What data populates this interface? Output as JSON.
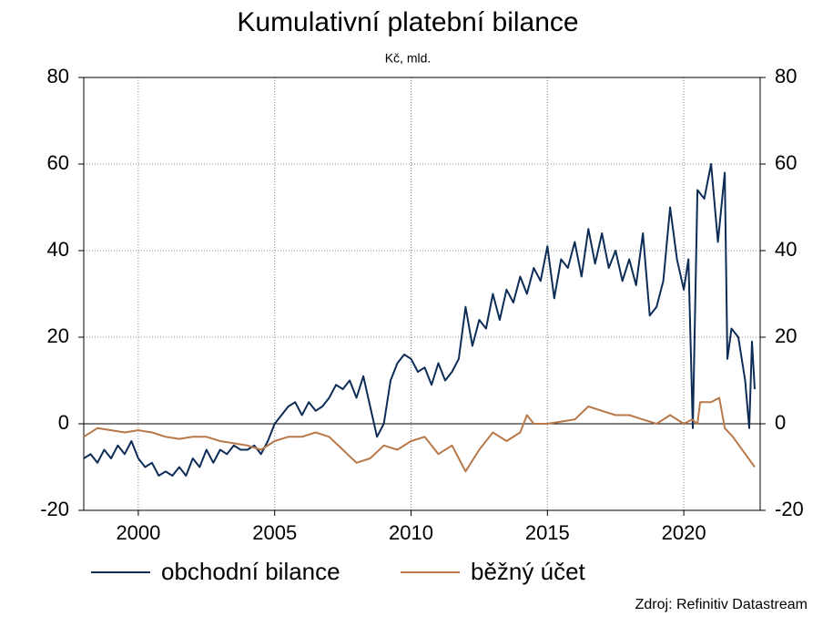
{
  "chart_data": {
    "type": "line",
    "title": "Kumulativní platební bilance",
    "subtitle": "Kč, mld.",
    "source": "Zdroj: Refinitiv Datastream",
    "xlim": [
      1998,
      2022.8
    ],
    "xticks": [
      2000,
      2005,
      2010,
      2015,
      2020
    ],
    "ylim": [
      -20,
      80
    ],
    "yticks": [
      -20,
      0,
      20,
      40,
      60,
      80
    ],
    "y2lim": [
      -20,
      80
    ],
    "y2ticks": [
      -20,
      0,
      20,
      40,
      60,
      80
    ],
    "grid": true,
    "legend": "bottom",
    "series": [
      {
        "name": "obchodní bilance",
        "color": "#0d2d57",
        "x": [
          1998,
          1998.25,
          1998.5,
          1998.75,
          1999,
          1999.25,
          1999.5,
          1999.75,
          2000,
          2000.25,
          2000.5,
          2000.75,
          2001,
          2001.25,
          2001.5,
          2001.75,
          2002,
          2002.25,
          2002.5,
          2002.75,
          2003,
          2003.25,
          2003.5,
          2003.75,
          2004,
          2004.25,
          2004.5,
          2004.75,
          2005,
          2005.25,
          2005.5,
          2005.75,
          2006,
          2006.25,
          2006.5,
          2006.75,
          2007,
          2007.25,
          2007.5,
          2007.75,
          2008,
          2008.25,
          2008.5,
          2008.75,
          2009,
          2009.25,
          2009.5,
          2009.75,
          2010,
          2010.25,
          2010.5,
          2010.75,
          2011,
          2011.25,
          2011.5,
          2011.75,
          2012,
          2012.25,
          2012.5,
          2012.75,
          2013,
          2013.25,
          2013.5,
          2013.75,
          2014,
          2014.25,
          2014.5,
          2014.75,
          2015,
          2015.25,
          2015.5,
          2015.75,
          2016,
          2016.25,
          2016.5,
          2016.75,
          2017,
          2017.25,
          2017.5,
          2017.75,
          2018,
          2018.25,
          2018.5,
          2018.75,
          2019,
          2019.25,
          2019.5,
          2019.75,
          2020,
          2020.17,
          2020.33,
          2020.5,
          2020.75,
          2021,
          2021.25,
          2021.5,
          2021.6,
          2021.75,
          2022,
          2022.25,
          2022.4,
          2022.5,
          2022.6
        ],
        "values": [
          -8,
          -7,
          -9,
          -6,
          -8,
          -5,
          -7,
          -4,
          -8,
          -10,
          -9,
          -12,
          -11,
          -12,
          -10,
          -12,
          -8,
          -10,
          -6,
          -9,
          -6,
          -7,
          -5,
          -6,
          -6,
          -5,
          -7,
          -4,
          0,
          2,
          4,
          5,
          2,
          5,
          3,
          4,
          6,
          9,
          8,
          10,
          6,
          11,
          4,
          -3,
          0,
          10,
          14,
          16,
          15,
          12,
          13,
          9,
          14,
          10,
          12,
          15,
          27,
          18,
          24,
          22,
          30,
          24,
          31,
          28,
          34,
          30,
          36,
          33,
          41,
          29,
          38,
          36,
          42,
          34,
          45,
          37,
          44,
          36,
          40,
          33,
          38,
          32,
          44,
          25,
          27,
          33,
          50,
          38,
          31,
          38,
          -1,
          54,
          52,
          60,
          42,
          58,
          15,
          22,
          20,
          10,
          -1,
          19,
          8
        ]
      },
      {
        "name": "běžný účet",
        "color": "#b8784a",
        "x": [
          1998,
          1998.5,
          1999,
          1999.5,
          2000,
          2000.5,
          2001,
          2001.5,
          2002,
          2002.5,
          2003,
          2003.5,
          2004,
          2004.5,
          2005,
          2005.5,
          2006,
          2006.5,
          2007,
          2007.5,
          2008,
          2008.5,
          2009,
          2009.5,
          2010,
          2010.5,
          2011,
          2011.5,
          2012,
          2012.5,
          2013,
          2013.5,
          2014,
          2014.25,
          2014.5,
          2015,
          2016,
          2016.5,
          2017,
          2017.5,
          2018,
          2018.5,
          2019,
          2019.5,
          2020,
          2020.3,
          2020.5,
          2020.6,
          2021,
          2021.3,
          2021.5,
          2021.8,
          2022.6
        ],
        "values": [
          -3,
          -1,
          -1.5,
          -2,
          -1.5,
          -2,
          -3,
          -3.5,
          -3,
          -3,
          -4,
          -4.5,
          -5,
          -6,
          -4,
          -3,
          -3,
          -2,
          -3,
          -6,
          -9,
          -8,
          -5,
          -6,
          -4,
          -3,
          -7,
          -5,
          -11,
          -6,
          -2,
          -4,
          -2,
          2,
          0,
          0,
          1,
          4,
          3,
          2,
          2,
          1,
          0,
          2,
          0,
          1,
          0,
          5,
          5,
          6,
          -1,
          -3,
          -10
        ]
      }
    ]
  }
}
